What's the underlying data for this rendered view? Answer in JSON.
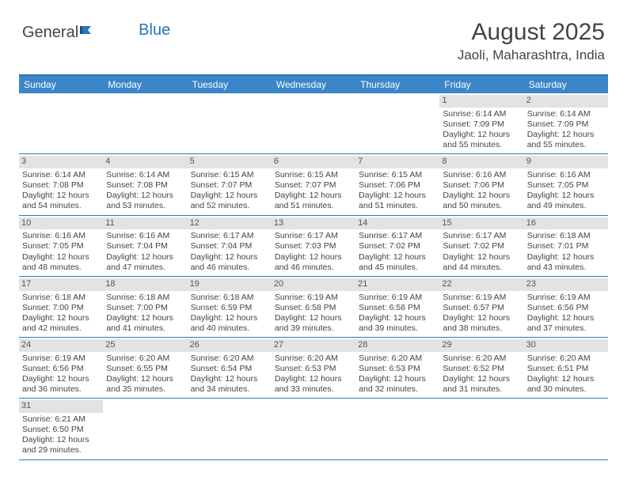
{
  "logo": {
    "text1": "General",
    "text2": "Blue"
  },
  "title": "August 2025",
  "location": "Jaoli, Maharashtra, India",
  "colors": {
    "header_bg": "#3a86c8",
    "header_border": "#2b75bb",
    "daynum_bg": "#e3e3e3",
    "text": "#444444",
    "row_divider": "#2b75bb"
  },
  "fonts": {
    "title_size": 30,
    "location_size": 17,
    "header_size": 12,
    "cell_size": 10.5
  },
  "day_names": [
    "Sunday",
    "Monday",
    "Tuesday",
    "Wednesday",
    "Thursday",
    "Friday",
    "Saturday"
  ],
  "weeks": [
    [
      null,
      null,
      null,
      null,
      null,
      {
        "n": "1",
        "sunrise": "Sunrise: 6:14 AM",
        "sunset": "Sunset: 7:09 PM",
        "day1": "Daylight: 12 hours",
        "day2": "and 55 minutes."
      },
      {
        "n": "2",
        "sunrise": "Sunrise: 6:14 AM",
        "sunset": "Sunset: 7:09 PM",
        "day1": "Daylight: 12 hours",
        "day2": "and 55 minutes."
      }
    ],
    [
      {
        "n": "3",
        "sunrise": "Sunrise: 6:14 AM",
        "sunset": "Sunset: 7:08 PM",
        "day1": "Daylight: 12 hours",
        "day2": "and 54 minutes."
      },
      {
        "n": "4",
        "sunrise": "Sunrise: 6:14 AM",
        "sunset": "Sunset: 7:08 PM",
        "day1": "Daylight: 12 hours",
        "day2": "and 53 minutes."
      },
      {
        "n": "5",
        "sunrise": "Sunrise: 6:15 AM",
        "sunset": "Sunset: 7:07 PM",
        "day1": "Daylight: 12 hours",
        "day2": "and 52 minutes."
      },
      {
        "n": "6",
        "sunrise": "Sunrise: 6:15 AM",
        "sunset": "Sunset: 7:07 PM",
        "day1": "Daylight: 12 hours",
        "day2": "and 51 minutes."
      },
      {
        "n": "7",
        "sunrise": "Sunrise: 6:15 AM",
        "sunset": "Sunset: 7:06 PM",
        "day1": "Daylight: 12 hours",
        "day2": "and 51 minutes."
      },
      {
        "n": "8",
        "sunrise": "Sunrise: 6:16 AM",
        "sunset": "Sunset: 7:06 PM",
        "day1": "Daylight: 12 hours",
        "day2": "and 50 minutes."
      },
      {
        "n": "9",
        "sunrise": "Sunrise: 6:16 AM",
        "sunset": "Sunset: 7:05 PM",
        "day1": "Daylight: 12 hours",
        "day2": "and 49 minutes."
      }
    ],
    [
      {
        "n": "10",
        "sunrise": "Sunrise: 6:16 AM",
        "sunset": "Sunset: 7:05 PM",
        "day1": "Daylight: 12 hours",
        "day2": "and 48 minutes."
      },
      {
        "n": "11",
        "sunrise": "Sunrise: 6:16 AM",
        "sunset": "Sunset: 7:04 PM",
        "day1": "Daylight: 12 hours",
        "day2": "and 47 minutes."
      },
      {
        "n": "12",
        "sunrise": "Sunrise: 6:17 AM",
        "sunset": "Sunset: 7:04 PM",
        "day1": "Daylight: 12 hours",
        "day2": "and 46 minutes."
      },
      {
        "n": "13",
        "sunrise": "Sunrise: 6:17 AM",
        "sunset": "Sunset: 7:03 PM",
        "day1": "Daylight: 12 hours",
        "day2": "and 46 minutes."
      },
      {
        "n": "14",
        "sunrise": "Sunrise: 6:17 AM",
        "sunset": "Sunset: 7:02 PM",
        "day1": "Daylight: 12 hours",
        "day2": "and 45 minutes."
      },
      {
        "n": "15",
        "sunrise": "Sunrise: 6:17 AM",
        "sunset": "Sunset: 7:02 PM",
        "day1": "Daylight: 12 hours",
        "day2": "and 44 minutes."
      },
      {
        "n": "16",
        "sunrise": "Sunrise: 6:18 AM",
        "sunset": "Sunset: 7:01 PM",
        "day1": "Daylight: 12 hours",
        "day2": "and 43 minutes."
      }
    ],
    [
      {
        "n": "17",
        "sunrise": "Sunrise: 6:18 AM",
        "sunset": "Sunset: 7:00 PM",
        "day1": "Daylight: 12 hours",
        "day2": "and 42 minutes."
      },
      {
        "n": "18",
        "sunrise": "Sunrise: 6:18 AM",
        "sunset": "Sunset: 7:00 PM",
        "day1": "Daylight: 12 hours",
        "day2": "and 41 minutes."
      },
      {
        "n": "19",
        "sunrise": "Sunrise: 6:18 AM",
        "sunset": "Sunset: 6:59 PM",
        "day1": "Daylight: 12 hours",
        "day2": "and 40 minutes."
      },
      {
        "n": "20",
        "sunrise": "Sunrise: 6:19 AM",
        "sunset": "Sunset: 6:58 PM",
        "day1": "Daylight: 12 hours",
        "day2": "and 39 minutes."
      },
      {
        "n": "21",
        "sunrise": "Sunrise: 6:19 AM",
        "sunset": "Sunset: 6:58 PM",
        "day1": "Daylight: 12 hours",
        "day2": "and 39 minutes."
      },
      {
        "n": "22",
        "sunrise": "Sunrise: 6:19 AM",
        "sunset": "Sunset: 6:57 PM",
        "day1": "Daylight: 12 hours",
        "day2": "and 38 minutes."
      },
      {
        "n": "23",
        "sunrise": "Sunrise: 6:19 AM",
        "sunset": "Sunset: 6:56 PM",
        "day1": "Daylight: 12 hours",
        "day2": "and 37 minutes."
      }
    ],
    [
      {
        "n": "24",
        "sunrise": "Sunrise: 6:19 AM",
        "sunset": "Sunset: 6:56 PM",
        "day1": "Daylight: 12 hours",
        "day2": "and 36 minutes."
      },
      {
        "n": "25",
        "sunrise": "Sunrise: 6:20 AM",
        "sunset": "Sunset: 6:55 PM",
        "day1": "Daylight: 12 hours",
        "day2": "and 35 minutes."
      },
      {
        "n": "26",
        "sunrise": "Sunrise: 6:20 AM",
        "sunset": "Sunset: 6:54 PM",
        "day1": "Daylight: 12 hours",
        "day2": "and 34 minutes."
      },
      {
        "n": "27",
        "sunrise": "Sunrise: 6:20 AM",
        "sunset": "Sunset: 6:53 PM",
        "day1": "Daylight: 12 hours",
        "day2": "and 33 minutes."
      },
      {
        "n": "28",
        "sunrise": "Sunrise: 6:20 AM",
        "sunset": "Sunset: 6:53 PM",
        "day1": "Daylight: 12 hours",
        "day2": "and 32 minutes."
      },
      {
        "n": "29",
        "sunrise": "Sunrise: 6:20 AM",
        "sunset": "Sunset: 6:52 PM",
        "day1": "Daylight: 12 hours",
        "day2": "and 31 minutes."
      },
      {
        "n": "30",
        "sunrise": "Sunrise: 6:20 AM",
        "sunset": "Sunset: 6:51 PM",
        "day1": "Daylight: 12 hours",
        "day2": "and 30 minutes."
      }
    ],
    [
      {
        "n": "31",
        "sunrise": "Sunrise: 6:21 AM",
        "sunset": "Sunset: 6:50 PM",
        "day1": "Daylight: 12 hours",
        "day2": "and 29 minutes."
      },
      null,
      null,
      null,
      null,
      null,
      null
    ]
  ]
}
